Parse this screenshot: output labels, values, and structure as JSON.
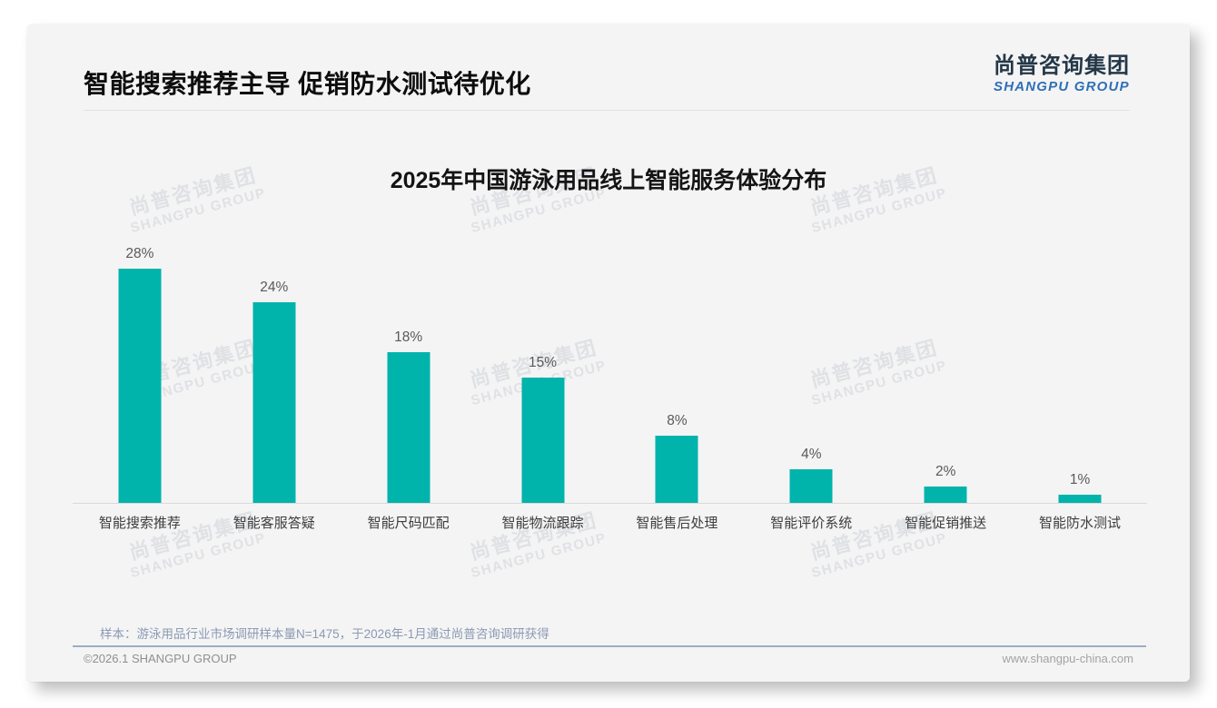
{
  "page": {
    "title": "智能搜索推荐主导 促销防水测试待优化",
    "logo": {
      "name_cn": "尚普咨询集团",
      "name_en": "SHANGPU GROUP"
    }
  },
  "chart_data": {
    "type": "bar",
    "title": "2025年中国游泳用品线上智能服务体验分布",
    "categories": [
      "智能搜索推荐",
      "智能客服答疑",
      "智能尺码匹配",
      "智能物流跟踪",
      "智能售后处理",
      "智能评价系统",
      "智能促销推送",
      "智能防水测试"
    ],
    "values": [
      28,
      24,
      18,
      15,
      8,
      4,
      2,
      1
    ],
    "value_suffix": "%",
    "bar_color": "#00b3ab",
    "xlabel": "",
    "ylabel": "",
    "ylim": [
      0,
      30
    ],
    "grid": false,
    "legend": "none",
    "value_labels": "above-bars"
  },
  "watermark": {
    "line1": "尚普咨询集团",
    "line2": "SHANGPU GROUP"
  },
  "footnote": "样本：游泳用品行业市场调研样本量N=1475，于2026年-1月通过尚普咨询调研获得",
  "footer": {
    "left": "©2026.1 SHANGPU GROUP",
    "right": "www.shangpu-china.com"
  },
  "colors": {
    "accent_teal": "#00b3ab",
    "logo_navy": "#243747",
    "logo_blue": "#2e6fb7",
    "footnote_gray_blue": "#8b9ab2",
    "card_bg": "#f4f4f5"
  }
}
